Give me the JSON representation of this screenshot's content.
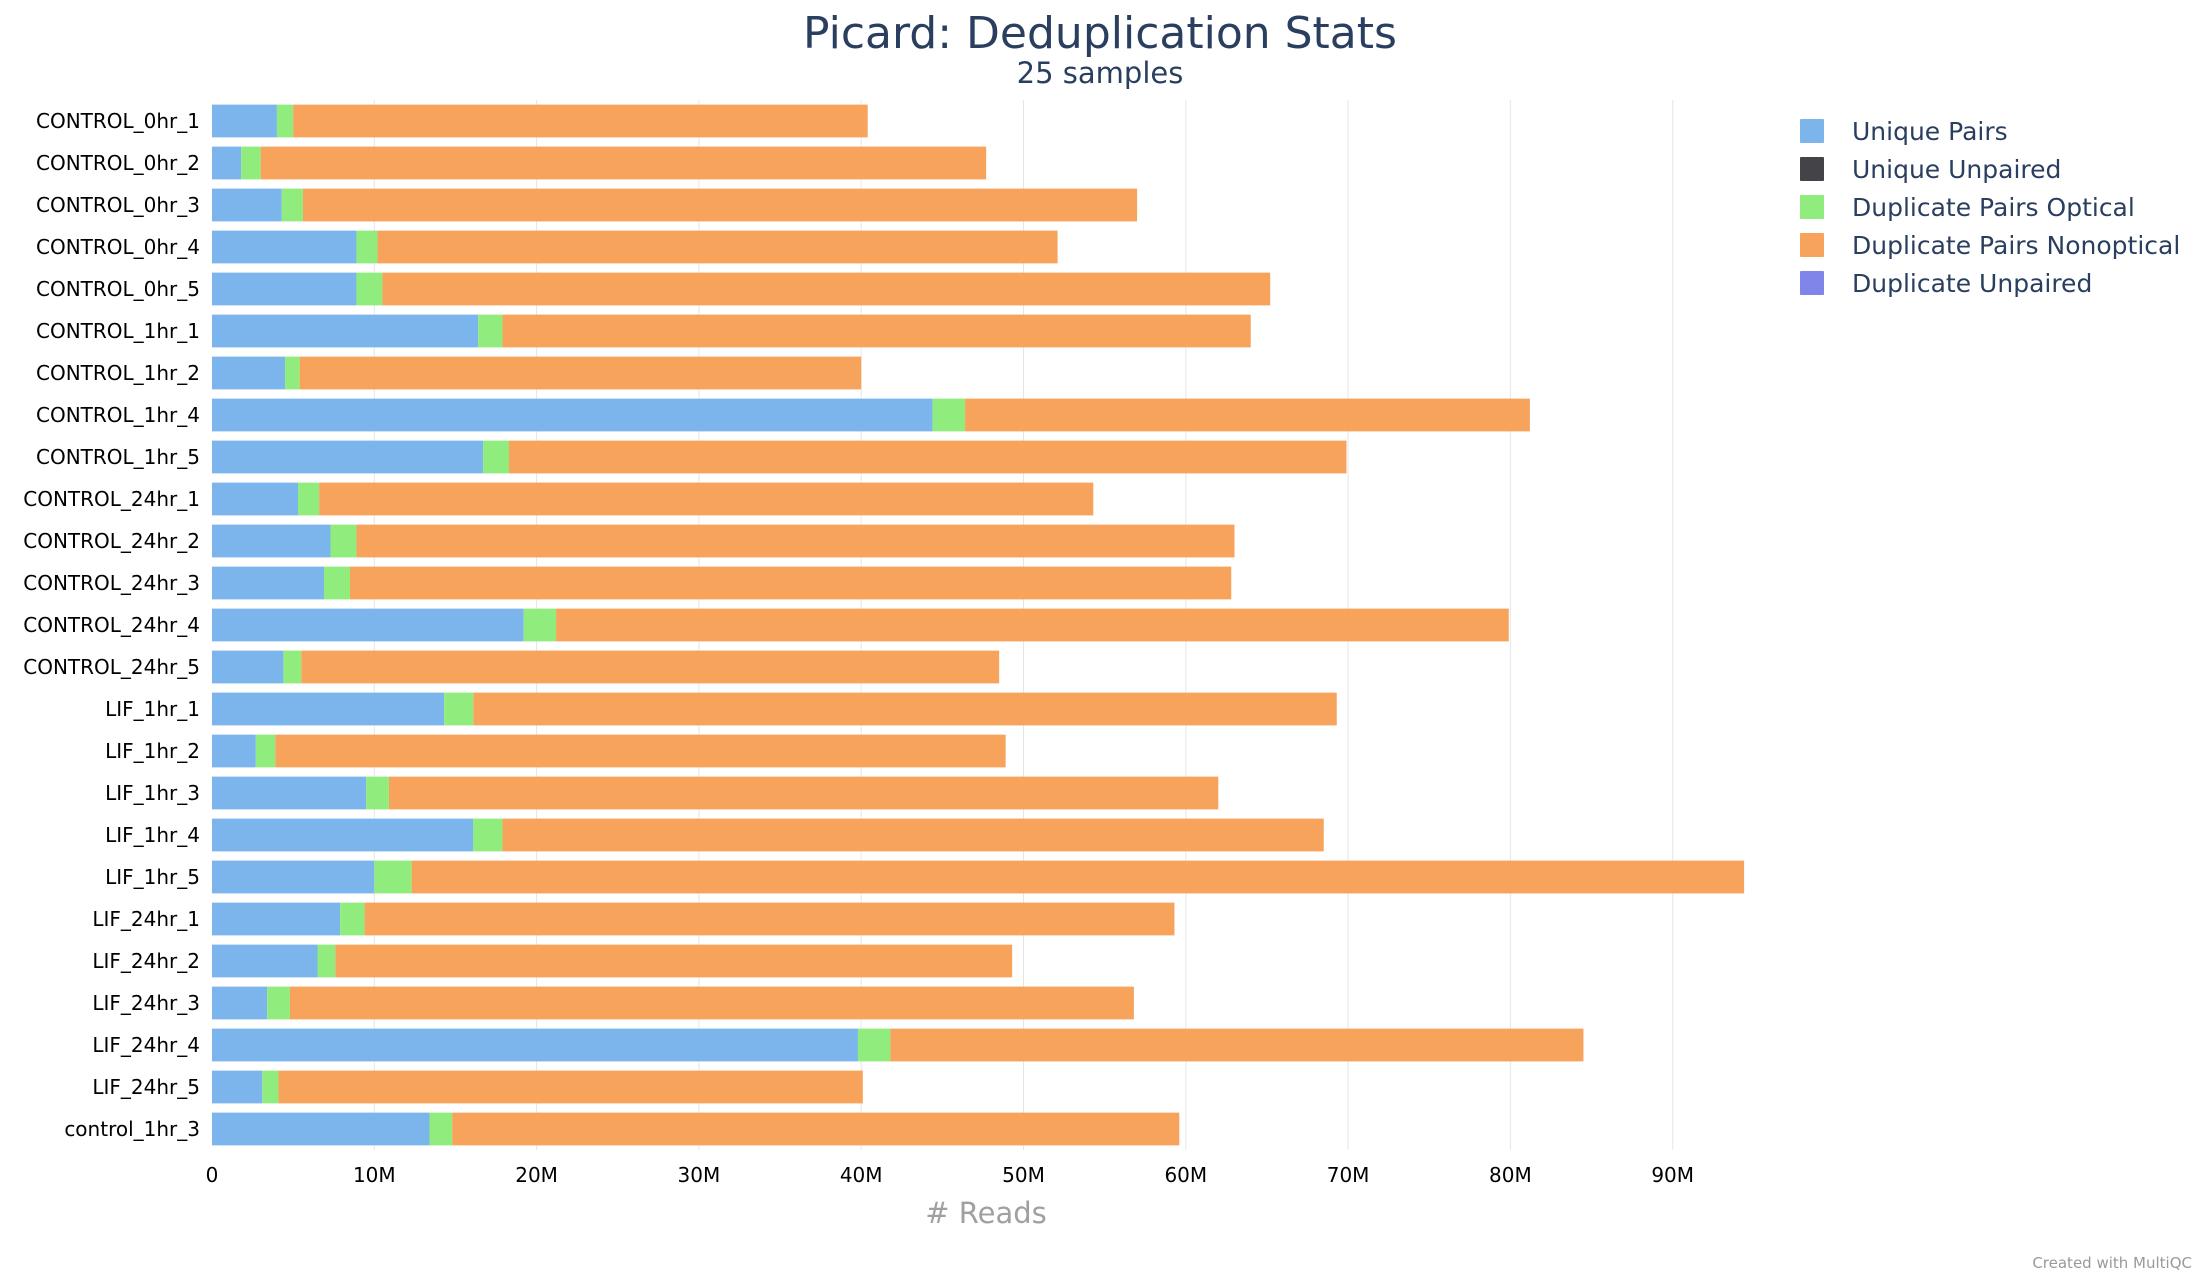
{
  "chart_data": {
    "type": "bar",
    "orientation": "horizontal",
    "stacked": true,
    "title": "Picard: Deduplication Stats",
    "subtitle": "25 samples",
    "xlabel": "# Reads",
    "ylabel": "",
    "xlim": [
      0,
      100000000
    ],
    "x_ticks": [
      0,
      10000000,
      20000000,
      30000000,
      40000000,
      50000000,
      60000000,
      70000000,
      80000000,
      90000000
    ],
    "x_tick_labels": [
      "0",
      "10M",
      "20M",
      "30M",
      "40M",
      "50M",
      "60M",
      "70M",
      "80M",
      "90M"
    ],
    "grid": "vertical",
    "legend_position": "top-right",
    "categories": [
      "CONTROL_0hr_1",
      "CONTROL_0hr_2",
      "CONTROL_0hr_3",
      "CONTROL_0hr_4",
      "CONTROL_0hr_5",
      "CONTROL_1hr_1",
      "CONTROL_1hr_2",
      "CONTROL_1hr_4",
      "CONTROL_1hr_5",
      "CONTROL_24hr_1",
      "CONTROL_24hr_2",
      "CONTROL_24hr_3",
      "CONTROL_24hr_4",
      "CONTROL_24hr_5",
      "LIF_1hr_1",
      "LIF_1hr_2",
      "LIF_1hr_3",
      "LIF_1hr_4",
      "LIF_1hr_5",
      "LIF_24hr_1",
      "LIF_24hr_2",
      "LIF_24hr_3",
      "LIF_24hr_4",
      "LIF_24hr_5",
      "control_1hr_3"
    ],
    "series": [
      {
        "name": "Unique Pairs",
        "color": "#7cb5ec",
        "values": [
          4000000,
          1800000,
          4300000,
          8900000,
          8900000,
          16400000,
          4500000,
          44400000,
          16700000,
          5300000,
          7300000,
          6900000,
          19200000,
          4400000,
          14300000,
          2700000,
          9500000,
          16100000,
          10000000,
          7900000,
          6500000,
          3400000,
          39800000,
          3100000,
          13400000
        ]
      },
      {
        "name": "Unique Unpaired",
        "color": "#434348",
        "values": [
          0,
          0,
          0,
          0,
          0,
          0,
          0,
          0,
          0,
          0,
          0,
          0,
          0,
          0,
          0,
          0,
          0,
          0,
          0,
          0,
          0,
          0,
          0,
          0,
          0
        ]
      },
      {
        "name": "Duplicate Pairs Optical",
        "color": "#90ed7d",
        "values": [
          1000000,
          1200000,
          1300000,
          1300000,
          1600000,
          1500000,
          900000,
          2000000,
          1600000,
          1300000,
          1600000,
          1600000,
          2000000,
          1100000,
          1800000,
          1200000,
          1400000,
          1800000,
          2300000,
          1500000,
          1100000,
          1400000,
          2000000,
          1000000,
          1400000
        ]
      },
      {
        "name": "Duplicate Pairs Nonoptical",
        "color": "#f7a35c",
        "values": [
          35400000,
          44700000,
          51400000,
          41900000,
          54700000,
          46100000,
          34600000,
          34800000,
          51600000,
          47700000,
          54100000,
          54300000,
          58700000,
          43000000,
          53200000,
          45000000,
          51100000,
          50600000,
          82100000,
          49900000,
          41700000,
          52000000,
          42700000,
          36000000,
          44800000
        ]
      },
      {
        "name": "Duplicate Unpaired",
        "color": "#8085e9",
        "values": [
          0,
          0,
          0,
          0,
          0,
          0,
          0,
          0,
          0,
          0,
          0,
          0,
          0,
          0,
          0,
          0,
          0,
          0,
          0,
          0,
          0,
          0,
          0,
          0,
          0
        ]
      }
    ]
  },
  "credit": "Created with MultiQC"
}
